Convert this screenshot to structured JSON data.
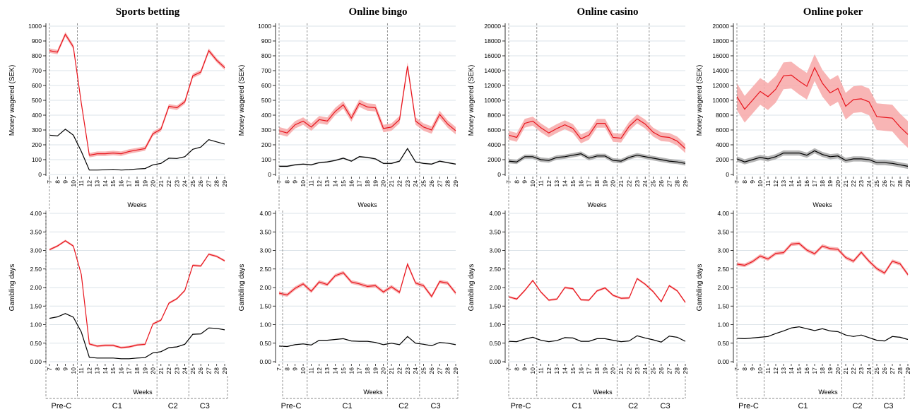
{
  "figure": {
    "x_label": "Weeks",
    "weeks": [
      7,
      8,
      9,
      10,
      11,
      12,
      13,
      14,
      15,
      16,
      17,
      18,
      19,
      20,
      21,
      22,
      23,
      24,
      25,
      26,
      27,
      28,
      29
    ],
    "phase_boundaries": [
      10.5,
      20.5,
      24.5
    ],
    "phase_labels": [
      {
        "label": "Pre-C",
        "center": 8.5
      },
      {
        "label": "C1",
        "center": 15.5
      },
      {
        "label": "C2",
        "center": 22.5
      },
      {
        "label": "C3",
        "center": 26.5
      }
    ],
    "colors": {
      "high": "#e8141c",
      "high_band": "#f7a8a8",
      "low": "#000000",
      "low_band": "#a8a8a8",
      "grid": "#dbe3e8",
      "phase_line": "#888888"
    }
  },
  "chart_data": [
    {
      "type": "line",
      "panel": "sports-money",
      "title": "Sports betting",
      "ylabel": "Money wagered (SEK)",
      "xlabel": "Weeks",
      "ylim": [
        0,
        1000
      ],
      "yticks": [
        0,
        100,
        200,
        300,
        400,
        500,
        600,
        700,
        800,
        900,
        1000
      ],
      "series": [
        {
          "values": [
            835,
            825,
            945,
            860,
            480,
            130,
            140,
            140,
            145,
            140,
            155,
            165,
            175,
            275,
            305,
            460,
            450,
            490,
            665,
            690,
            835,
            770,
            720
          ],
          "band": 15
        },
        {
          "values": [
            265,
            260,
            305,
            265,
            155,
            30,
            30,
            32,
            35,
            30,
            33,
            37,
            40,
            65,
            75,
            110,
            108,
            120,
            170,
            185,
            235,
            220,
            205
          ],
          "band": 0
        }
      ]
    },
    {
      "type": "line",
      "panel": "bingo-money",
      "title": "Online bingo",
      "ylabel": "Money wagered (SEK)",
      "xlabel": "Weeks",
      "ylim": [
        0,
        1000
      ],
      "yticks": [
        0,
        100,
        200,
        300,
        400,
        500,
        600,
        700,
        800,
        900,
        1000
      ],
      "series": [
        {
          "values": [
            295,
            280,
            335,
            360,
            320,
            370,
            360,
            425,
            470,
            380,
            480,
            455,
            450,
            310,
            320,
            370,
            730,
            360,
            320,
            300,
            405,
            340,
            295
          ],
          "band": 25
        },
        {
          "values": [
            55,
            55,
            65,
            70,
            65,
            80,
            85,
            95,
            110,
            90,
            120,
            115,
            105,
            75,
            75,
            90,
            175,
            85,
            75,
            70,
            90,
            80,
            70
          ],
          "band": 5
        }
      ]
    },
    {
      "type": "line",
      "panel": "casino-money",
      "title": "Online casino",
      "ylabel": "Money wagered (SEK)",
      "xlabel": "Weeks",
      "ylim": [
        0,
        20000
      ],
      "yticks": [
        0,
        2000,
        4000,
        6000,
        8000,
        10000,
        12000,
        14000,
        16000,
        18000,
        20000
      ],
      "series": [
        {
          "values": [
            5300,
            5000,
            6900,
            7200,
            6300,
            5600,
            6200,
            6700,
            6200,
            4800,
            5300,
            6900,
            6900,
            5000,
            4900,
            6500,
            7500,
            6800,
            5700,
            5100,
            5000,
            4500,
            3500
          ],
          "band": 600
        },
        {
          "values": [
            1800,
            1700,
            2400,
            2400,
            2000,
            1900,
            2300,
            2400,
            2600,
            2800,
            2200,
            2500,
            2500,
            1900,
            1800,
            2300,
            2600,
            2400,
            2200,
            2000,
            1800,
            1700,
            1500
          ],
          "band": 300
        }
      ]
    },
    {
      "type": "line",
      "panel": "poker-money",
      "title": "Online poker",
      "ylabel": "Money wagered (SEK)",
      "xlabel": "Weeks",
      "ylim": [
        0,
        20000
      ],
      "yticks": [
        0,
        2000,
        4000,
        6000,
        8000,
        10000,
        12000,
        14000,
        16000,
        18000,
        20000
      ],
      "series": [
        {
          "values": [
            10500,
            8800,
            10000,
            11200,
            10500,
            11500,
            13300,
            13400,
            12600,
            11900,
            14400,
            12300,
            11000,
            11600,
            9200,
            10100,
            10200,
            9800,
            7800,
            7700,
            7600,
            6400,
            5400
          ],
          "band": 1800
        },
        {
          "values": [
            2100,
            1700,
            2000,
            2300,
            2100,
            2400,
            2900,
            2900,
            2900,
            2600,
            3200,
            2700,
            2400,
            2500,
            1900,
            2100,
            2100,
            2000,
            1600,
            1600,
            1500,
            1300,
            1100
          ],
          "band": 350
        }
      ]
    },
    {
      "type": "line",
      "panel": "sports-days",
      "title": "",
      "ylabel": "Gambling days",
      "xlabel": "Weeks",
      "ylim": [
        0,
        4
      ],
      "yticks": [
        "0.00",
        "0.50",
        "1.00",
        "1.50",
        "2.00",
        "2.50",
        "3.00",
        "3.50",
        "4.00"
      ],
      "series": [
        {
          "values": [
            3.02,
            3.12,
            3.26,
            3.12,
            2.35,
            0.48,
            0.42,
            0.44,
            0.44,
            0.38,
            0.4,
            0.45,
            0.47,
            1.02,
            1.12,
            1.58,
            1.7,
            1.92,
            2.6,
            2.58,
            2.9,
            2.84,
            2.72
          ],
          "band": 0.03
        },
        {
          "values": [
            1.17,
            1.21,
            1.3,
            1.2,
            0.8,
            0.12,
            0.1,
            0.1,
            0.1,
            0.08,
            0.08,
            0.1,
            0.11,
            0.24,
            0.27,
            0.38,
            0.4,
            0.47,
            0.74,
            0.75,
            0.91,
            0.9,
            0.86
          ],
          "band": 0.01
        }
      ]
    },
    {
      "type": "line",
      "panel": "bingo-days",
      "title": "",
      "ylabel": "Gambling days",
      "xlabel": "Weeks",
      "ylim": [
        0,
        4
      ],
      "yticks": [
        "0.00",
        "0.50",
        "1.00",
        "1.50",
        "2.00",
        "2.50",
        "3.00",
        "3.50",
        "4.00"
      ],
      "series": [
        {
          "values": [
            1.85,
            1.8,
            1.98,
            2.1,
            1.9,
            2.15,
            2.08,
            2.32,
            2.4,
            2.15,
            2.1,
            2.03,
            2.05,
            1.88,
            2.02,
            1.87,
            2.63,
            2.12,
            2.05,
            1.76,
            2.16,
            2.12,
            1.85
          ],
          "band": 0.05
        },
        {
          "values": [
            0.42,
            0.41,
            0.46,
            0.48,
            0.45,
            0.58,
            0.58,
            0.6,
            0.62,
            0.56,
            0.55,
            0.55,
            0.52,
            0.46,
            0.5,
            0.46,
            0.68,
            0.5,
            0.47,
            0.43,
            0.52,
            0.5,
            0.46
          ],
          "band": 0.01
        }
      ]
    },
    {
      "type": "line",
      "panel": "casino-days",
      "title": "",
      "ylabel": "Gambling days",
      "xlabel": "Weeks",
      "ylim": [
        0,
        4
      ],
      "yticks": [
        "0.00",
        "0.50",
        "1.00",
        "1.50",
        "2.00",
        "2.50",
        "3.00",
        "3.50",
        "4.00"
      ],
      "series": [
        {
          "values": [
            1.75,
            1.69,
            1.92,
            2.19,
            1.88,
            1.66,
            1.69,
            2.0,
            1.97,
            1.67,
            1.66,
            1.91,
            1.99,
            1.79,
            1.71,
            1.72,
            2.24,
            2.09,
            1.89,
            1.62,
            2.05,
            1.91,
            1.6
          ],
          "band": 0.03
        },
        {
          "values": [
            0.55,
            0.54,
            0.61,
            0.66,
            0.58,
            0.54,
            0.57,
            0.65,
            0.64,
            0.55,
            0.55,
            0.62,
            0.62,
            0.58,
            0.54,
            0.56,
            0.7,
            0.64,
            0.59,
            0.53,
            0.69,
            0.66,
            0.55
          ],
          "band": 0.01
        }
      ]
    },
    {
      "type": "line",
      "panel": "poker-days",
      "title": "",
      "ylabel": "Gambling days",
      "xlabel": "Weeks",
      "ylim": [
        0,
        4
      ],
      "yticks": [
        "0.00",
        "0.50",
        "1.00",
        "1.50",
        "2.00",
        "2.50",
        "3.00",
        "3.50",
        "4.00"
      ],
      "series": [
        {
          "values": [
            2.63,
            2.6,
            2.7,
            2.85,
            2.77,
            2.92,
            2.94,
            3.17,
            3.19,
            3.01,
            2.91,
            3.12,
            3.05,
            3.03,
            2.81,
            2.71,
            2.95,
            2.71,
            2.51,
            2.39,
            2.71,
            2.64,
            2.35
          ],
          "band": 0.05
        },
        {
          "values": [
            0.63,
            0.62,
            0.64,
            0.66,
            0.68,
            0.76,
            0.83,
            0.91,
            0.94,
            0.89,
            0.84,
            0.89,
            0.83,
            0.81,
            0.72,
            0.68,
            0.72,
            0.65,
            0.58,
            0.56,
            0.68,
            0.66,
            0.6
          ],
          "band": 0.01
        }
      ]
    }
  ]
}
